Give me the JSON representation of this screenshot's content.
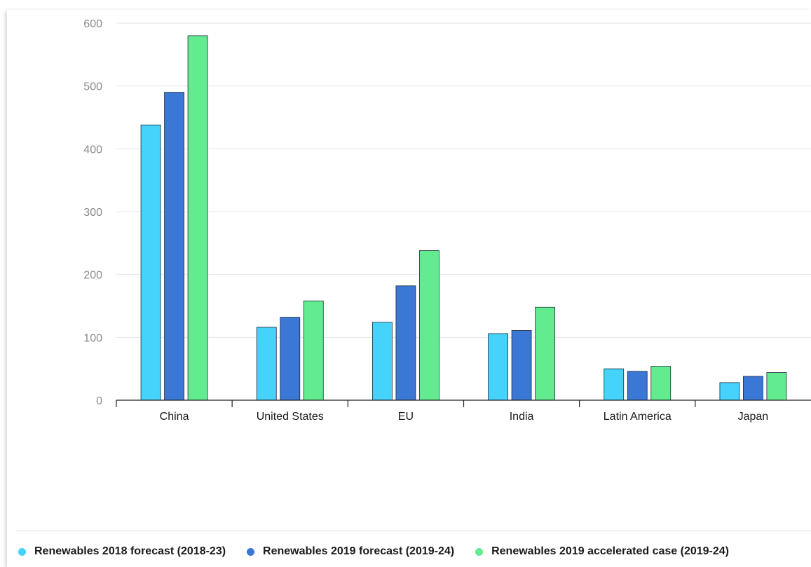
{
  "chart_data": {
    "type": "bar",
    "categories": [
      "China",
      "United States",
      "EU",
      "India",
      "Latin America",
      "Japan"
    ],
    "series": [
      {
        "name": "Renewables 2018 forecast (2018-23)",
        "color": "#45d3fb",
        "values": [
          438,
          116,
          124,
          106,
          50,
          28
        ]
      },
      {
        "name": "Renewables 2019 forecast (2019-24)",
        "color": "#3b78d6",
        "values": [
          490,
          132,
          182,
          111,
          46,
          38
        ]
      },
      {
        "name": "Renewables 2019 accelerated case (2019-24)",
        "color": "#62ec8f",
        "values": [
          580,
          158,
          238,
          148,
          54,
          44
        ]
      }
    ],
    "yticks": [
      "0",
      "100",
      "200",
      "300",
      "400",
      "500",
      "600"
    ],
    "ylim": [
      0,
      600
    ],
    "grid": true,
    "legend_position": "bottom"
  }
}
